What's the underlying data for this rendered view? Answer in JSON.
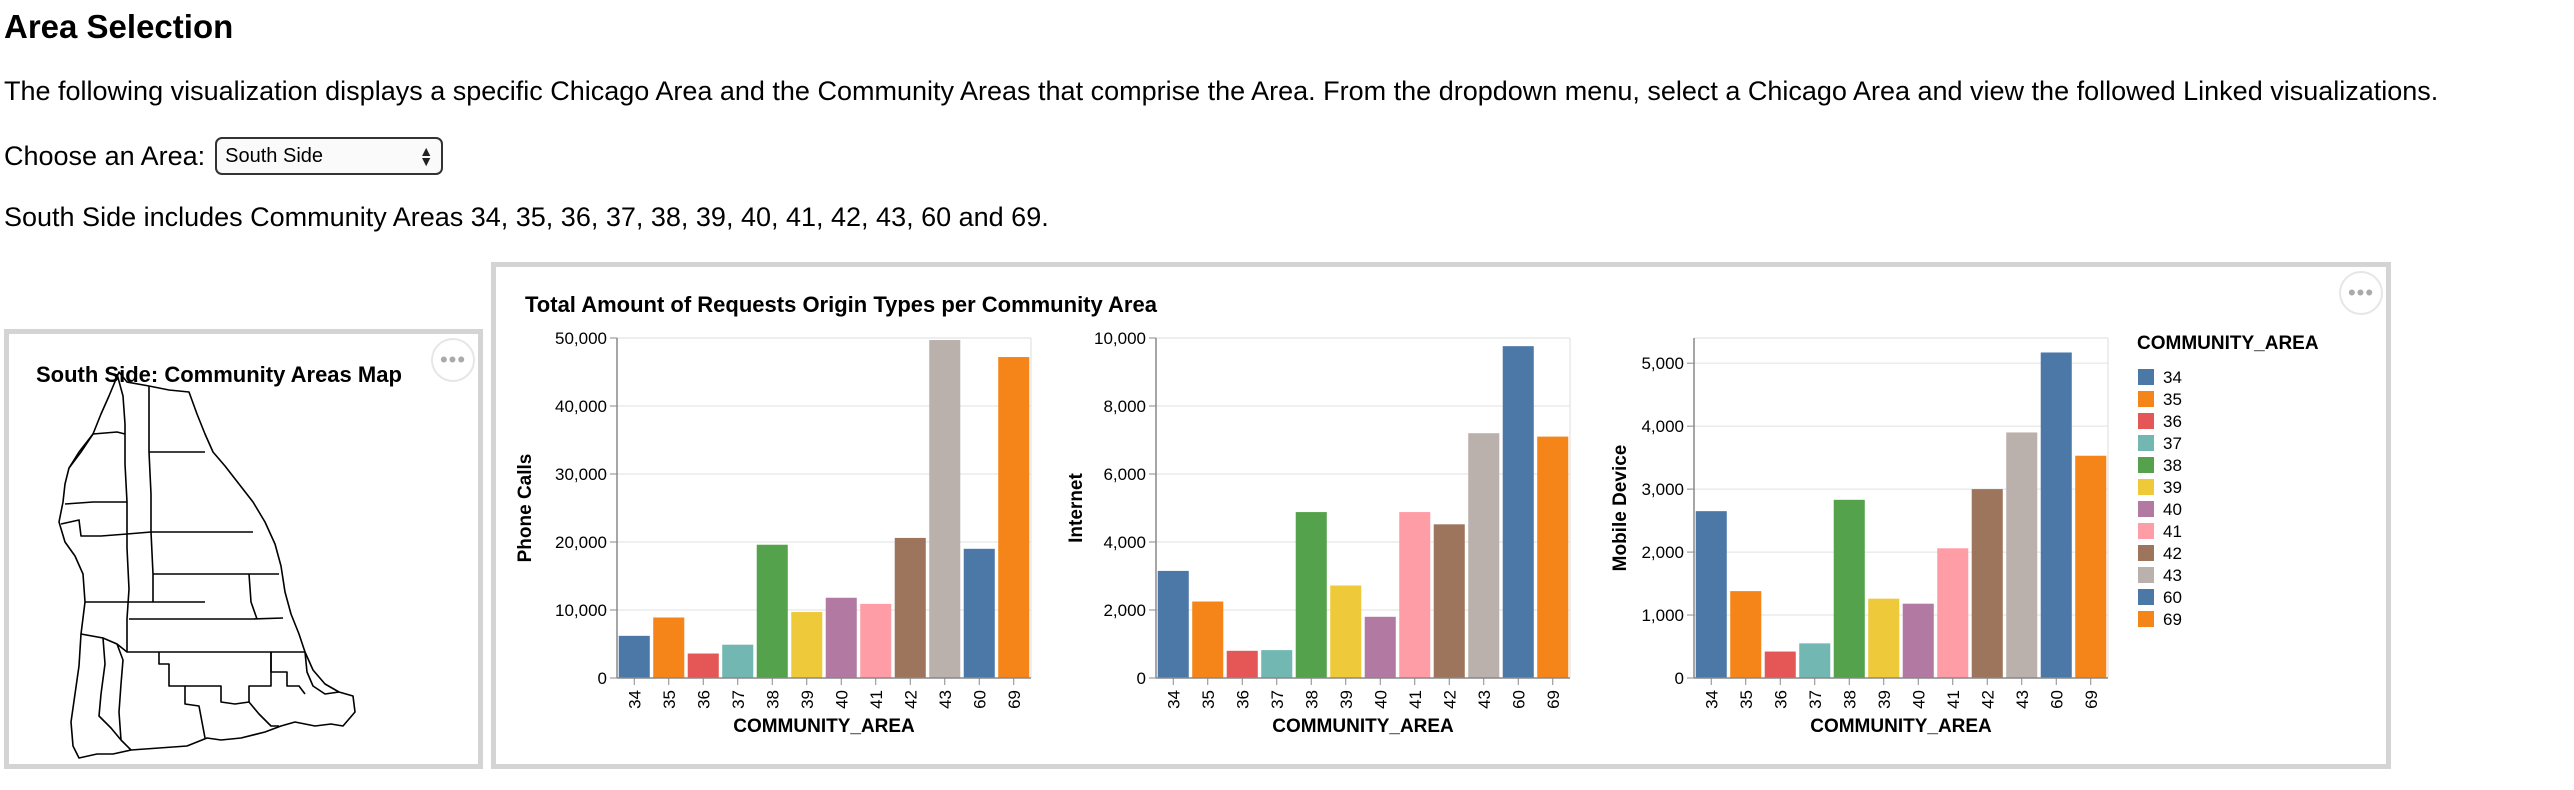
{
  "page": {
    "title": "Area Selection",
    "intro": "The following visualization displays a specific Chicago Area and the Community Areas that comprise the Area. From the dropdown menu, select a Chicago Area and view the followed Linked visualizations.",
    "area_label": "Choose an Area:",
    "area_selected": "South Side",
    "summary": "South Side includes Community Areas 34, 35, 36, 37, 38, 39, 40, 41, 42, 43, 60 and 69."
  },
  "map": {
    "title": "South Side: Community Areas Map",
    "menu_icon": "ellipsis-icon"
  },
  "charts_menu_icon": "ellipsis-icon",
  "chart_data": {
    "type": "bar",
    "title": "Total Amount of Requests Origin Types per Community Area",
    "categories": [
      "34",
      "35",
      "36",
      "37",
      "38",
      "39",
      "40",
      "41",
      "42",
      "43",
      "60",
      "69"
    ],
    "colors": [
      "#4c78a8",
      "#f58518",
      "#e45756",
      "#72b7b2",
      "#54a24b",
      "#eeca3b",
      "#b279a2",
      "#ff9da6",
      "#9d755d",
      "#bab0ac",
      "#4c78a8",
      "#f58518"
    ],
    "subcharts": [
      {
        "xlabel": "COMMUNITY_AREA",
        "ylabel": "Phone Calls",
        "ylim": [
          0,
          50000
        ],
        "ticks": [
          0,
          10000,
          20000,
          30000,
          40000,
          50000
        ],
        "tick_labels": [
          "0",
          "10,000",
          "20,000",
          "30,000",
          "40,000",
          "50,000"
        ],
        "values": [
          6200,
          8900,
          3600,
          4900,
          19600,
          9700,
          11800,
          10900,
          20600,
          49700,
          19000,
          47200
        ]
      },
      {
        "xlabel": "COMMUNITY_AREA",
        "ylabel": "Internet",
        "ylim": [
          0,
          10000
        ],
        "ticks": [
          0,
          2000,
          4000,
          6000,
          8000,
          10000
        ],
        "tick_labels": [
          "0",
          "2,000",
          "4,000",
          "6,000",
          "8,000",
          "10,000"
        ],
        "values": [
          3150,
          2250,
          800,
          820,
          4880,
          2720,
          1800,
          4880,
          4520,
          7200,
          9760,
          7100
        ]
      },
      {
        "xlabel": "COMMUNITY_AREA",
        "ylabel": "Mobile Device",
        "ylim": [
          0,
          5400
        ],
        "ticks": [
          0,
          1000,
          2000,
          3000,
          4000,
          5000
        ],
        "tick_labels": [
          "0",
          "1,000",
          "2,000",
          "3,000",
          "4,000",
          "5,000"
        ],
        "values": [
          2650,
          1380,
          420,
          550,
          2830,
          1260,
          1180,
          2060,
          3000,
          3900,
          5170,
          3530
        ]
      }
    ],
    "legend": {
      "title": "COMMUNITY_AREA",
      "placement": "right",
      "entries": [
        "34",
        "35",
        "36",
        "37",
        "38",
        "39",
        "40",
        "41",
        "42",
        "43",
        "60",
        "69"
      ]
    },
    "grid": true
  }
}
